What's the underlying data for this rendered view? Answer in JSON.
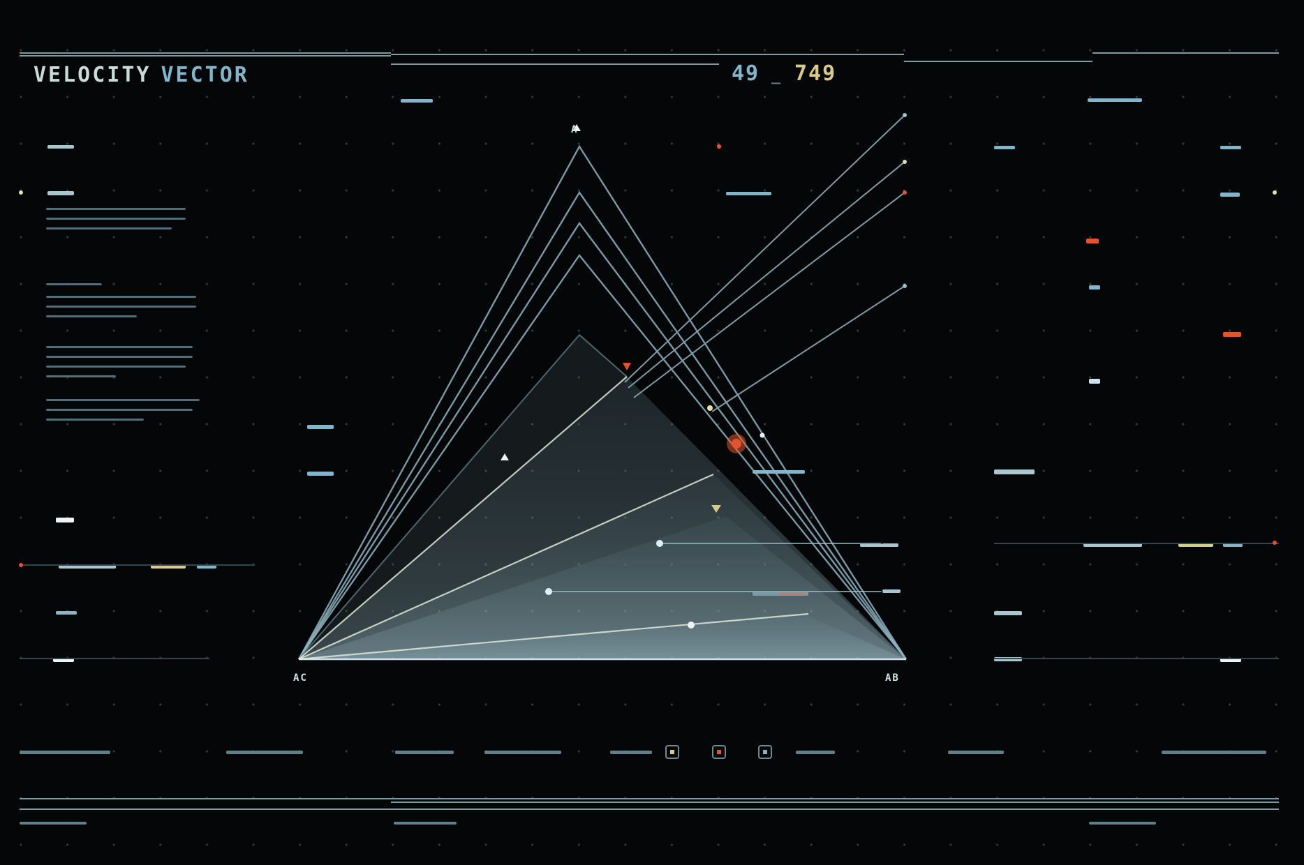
{
  "header": {
    "title_word1": "VELOCITY",
    "title_word2": "VECTOR",
    "readout_a": "49",
    "readout_sep": "_",
    "readout_b": "749"
  },
  "vertices": {
    "top": "A",
    "left": "AC",
    "right": "AB"
  },
  "colors": {
    "background": "#050607",
    "accent_cyan": "#7fb6cc",
    "accent_orange": "#e0552c",
    "accent_yellow": "#d9c98a",
    "line": "#8fb4c2"
  }
}
